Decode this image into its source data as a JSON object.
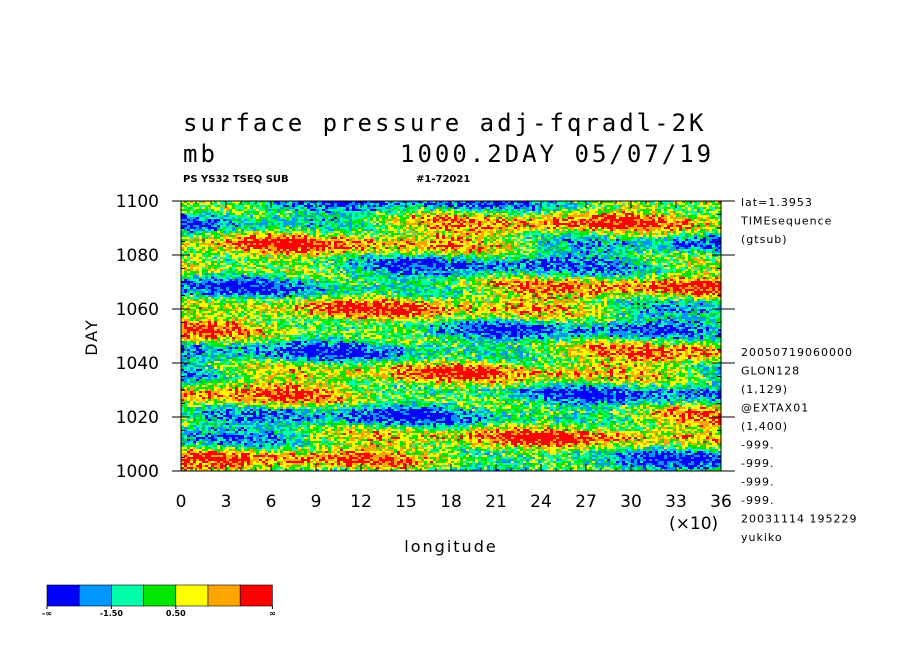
{
  "title": "surface pressure adj-fqradl-2K",
  "units": "mb",
  "run_info": "1000.2DAY 05/07/19",
  "subtitle_left": "PS YS32 TSEQ SUB",
  "subtitle_right": "#1-72021",
  "chart_data": {
    "type": "heatmap",
    "xlabel": "longitude",
    "ylabel": "DAY",
    "x_ticks": [
      "0",
      "3",
      "6",
      "9",
      "12",
      "15",
      "18",
      "21",
      "24",
      "27",
      "30",
      "33",
      "36"
    ],
    "x_scale_label": "(×10)",
    "xlim": [
      0,
      360
    ],
    "y_ticks": [
      "1000",
      "1020",
      "1040",
      "1060",
      "1080",
      "1100"
    ],
    "ylim": [
      1000,
      1100
    ],
    "colorbar": {
      "colors": [
        "#0000ff",
        "#0096ff",
        "#00ffaa",
        "#00e600",
        "#ffff00",
        "#ffa500",
        "#ff0000"
      ],
      "labels": [
        "-∞",
        "-1.50",
        "0.50",
        "∞"
      ]
    }
  },
  "side_info_top": [
    "lat=1.3953",
    "TIMEsequence",
    "(gtsub)"
  ],
  "side_info_bottom": [
    "20050719060000",
    "GLON128",
    "(1,129)",
    "@EXTAX01",
    "(1,400)",
    "-999.",
    "-999.",
    "-999.",
    "-999.",
    "20031114 195229",
    "yukiko"
  ]
}
